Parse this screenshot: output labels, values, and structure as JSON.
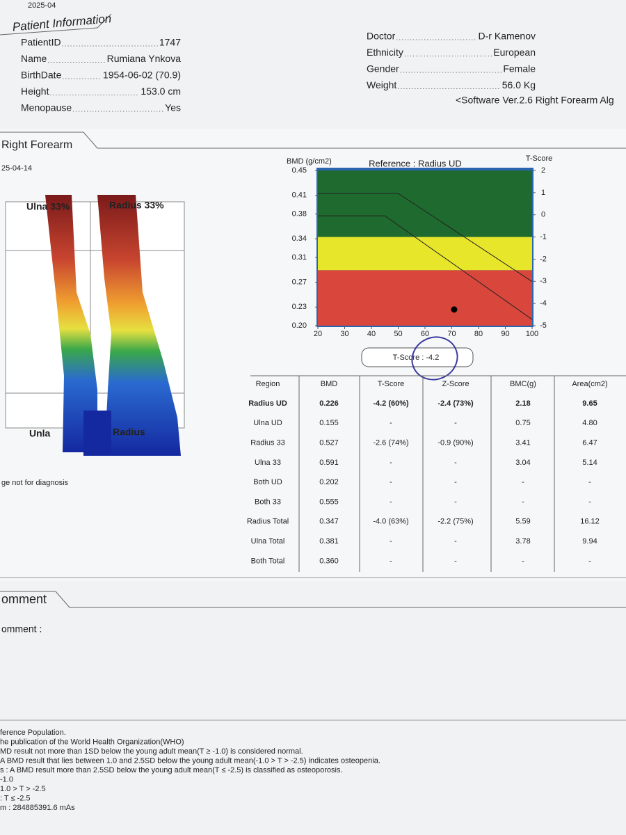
{
  "corner_date": "2025-04",
  "patient_info": {
    "title": "Patient Information",
    "left": [
      {
        "label": "PatientID",
        "value": "1747"
      },
      {
        "label": "Name",
        "value": "Rumiana Ynkova"
      },
      {
        "label": "BirthDate",
        "value": "1954-06-02 (70.9)"
      },
      {
        "label": "Height",
        "value": "153.0 cm"
      },
      {
        "label": "Menopause",
        "value": "Yes"
      }
    ],
    "right": [
      {
        "label": "Doctor",
        "value": "D-r Kamenov"
      },
      {
        "label": "Ethnicity",
        "value": "European"
      },
      {
        "label": "Gender",
        "value": "Female"
      },
      {
        "label": "Weight",
        "value": "56.0 Kg"
      }
    ],
    "software": "<Software Ver.2.6  Right Forearm Alg"
  },
  "scan": {
    "title": "Right Forearm",
    "date": "25-04-14",
    "labels": [
      "Ulna 33%",
      "Radius 33%",
      "Unla",
      "Radius"
    ],
    "note": "ge not for diagnosis"
  },
  "chart_data": {
    "type": "line",
    "title": "Reference : Radius UD",
    "y_label": "BMD (g/cm2)",
    "y2_label": "T-Score",
    "xlim": [
      20,
      100
    ],
    "xticks": [
      20,
      30,
      40,
      50,
      60,
      70,
      80,
      90,
      100
    ],
    "ylim": [
      0.2,
      0.45
    ],
    "yticks": [
      {
        "value": 0.2,
        "label": "0.20"
      },
      0.23,
      0.27,
      0.31,
      0.34,
      0.38,
      0.41,
      0.45
    ],
    "y2lim": [
      -5,
      2
    ],
    "y2ticks": [
      2,
      1,
      0,
      -1,
      -2,
      -3,
      -4,
      -5
    ],
    "bands": [
      {
        "from": -1,
        "to": 2,
        "color": "#1f6a2e"
      },
      {
        "from": -2.5,
        "to": -1,
        "color": "#e8e62a"
      },
      {
        "from": -5,
        "to": -2.5,
        "color": "#d9473c"
      }
    ],
    "series": [
      {
        "color": "#222",
        "x": [
          20,
          50,
          100
        ],
        "values": [
          0.413,
          0.413,
          0.271
        ]
      },
      {
        "color": "#222",
        "x": [
          20,
          45,
          100
        ],
        "values": [
          0.377,
          0.377,
          0.21
        ]
      }
    ],
    "points": [
      {
        "x": 70.9,
        "value": 0.226,
        "color": "#000"
      }
    ]
  },
  "t_score_box": "T-Score : -4.2",
  "table": {
    "header": [
      "Region",
      "BMD",
      "T-Score",
      "Z-Score",
      "BMC(g)",
      "Area(cm2)"
    ],
    "rows": [
      [
        "Radius UD",
        "0.226",
        "-4.2 (60%)",
        "-2.4 (73%)",
        "2.18",
        "9.65"
      ],
      [
        "Ulna UD",
        "0.155",
        "-",
        "-",
        "0.75",
        "4.80"
      ],
      [
        "Radius 33",
        "0.527",
        "-2.6 (74%)",
        "-0.9 (90%)",
        "3.41",
        "6.47"
      ],
      [
        "Ulna 33",
        "0.591",
        "-",
        "-",
        "3.04",
        "5.14"
      ],
      [
        "Both UD",
        "0.202",
        "-",
        "-",
        "-",
        "-"
      ],
      [
        "Both 33",
        "0.555",
        "-",
        "-",
        "-",
        "-"
      ],
      [
        "Radius Total",
        "0.347",
        "-4.0 (63%)",
        "-2.2 (75%)",
        "5.59",
        "16.12"
      ],
      [
        "Ulna Total",
        "0.381",
        "-",
        "-",
        "3.78",
        "9.94"
      ],
      [
        "Both Total",
        "0.360",
        "-",
        "-",
        "-",
        "-"
      ]
    ]
  },
  "comment": {
    "title": "omment",
    "label": "omment :"
  },
  "footnotes": [
    "ference Population.",
    "he publication of the World Health Organization(WHO)",
    "MD result not more than 1SD below the young adult mean(T ≥ -1.0) is considered normal.",
    "A BMD result that lies between 1.0 and 2.5SD below the young adult mean(-1.0 > T > -2.5) indicates osteopenia.",
    "s : A BMD result more than 2.5SD below the young adult mean(T ≤ -2.5) is classified as osteoporosis.",
    "-1.0",
    "1.0 > T > -2.5",
    ": T ≤ -2.5",
    "m : 284885391.6 mAs"
  ]
}
